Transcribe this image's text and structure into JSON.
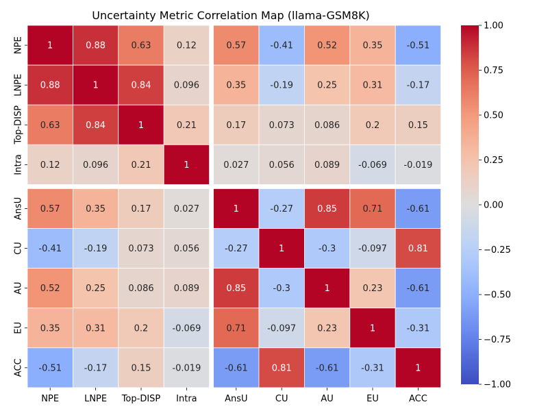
{
  "chart_data": {
    "type": "heatmap",
    "title": "Uncertainty Metric Correlation Map (llama-GSM8K)",
    "xlabel": "",
    "ylabel": "",
    "rows": [
      "NPE",
      "LNPE",
      "Top-DISP",
      "Intra",
      "AnsU",
      "CU",
      "AU",
      "EU",
      "ACC"
    ],
    "cols": [
      "NPE",
      "LNPE",
      "Top-DISP",
      "Intra",
      "AnsU",
      "CU",
      "AU",
      "EU",
      "ACC"
    ],
    "values": [
      [
        1,
        0.88,
        0.63,
        0.12,
        0.57,
        -0.41,
        0.52,
        0.35,
        -0.51
      ],
      [
        0.88,
        1,
        0.84,
        0.096,
        0.35,
        -0.19,
        0.25,
        0.31,
        -0.17
      ],
      [
        0.63,
        0.84,
        1,
        0.21,
        0.17,
        0.073,
        0.086,
        0.2,
        0.15
      ],
      [
        0.12,
        0.096,
        0.21,
        1,
        0.027,
        0.056,
        0.089,
        -0.069,
        -0.019
      ],
      [
        0.57,
        0.35,
        0.17,
        0.027,
        1,
        -0.27,
        0.85,
        0.71,
        -0.61
      ],
      [
        -0.41,
        -0.19,
        0.073,
        0.056,
        -0.27,
        1,
        -0.3,
        -0.097,
        0.81
      ],
      [
        0.52,
        0.25,
        0.086,
        0.089,
        0.85,
        -0.3,
        1,
        0.23,
        -0.61
      ],
      [
        0.35,
        0.31,
        0.2,
        -0.069,
        0.71,
        -0.097,
        0.23,
        1,
        -0.31
      ],
      [
        -0.51,
        -0.17,
        0.15,
        -0.019,
        -0.61,
        0.81,
        -0.61,
        -0.31,
        1
      ]
    ],
    "labels": [
      [
        "1",
        "0.88",
        "0.63",
        "0.12",
        "0.57",
        "-0.41",
        "0.52",
        "0.35",
        "-0.51"
      ],
      [
        "0.88",
        "1",
        "0.84",
        "0.096",
        "0.35",
        "-0.19",
        "0.25",
        "0.31",
        "-0.17"
      ],
      [
        "0.63",
        "0.84",
        "1",
        "0.21",
        "0.17",
        "0.073",
        "0.086",
        "0.2",
        "0.15"
      ],
      [
        "0.12",
        "0.096",
        "0.21",
        "1",
        "0.027",
        "0.056",
        "0.089",
        "-0.069",
        "-0.019"
      ],
      [
        "0.57",
        "0.35",
        "0.17",
        "0.027",
        "1",
        "-0.27",
        "0.85",
        "0.71",
        "-0.61"
      ],
      [
        "-0.41",
        "-0.19",
        "0.073",
        "0.056",
        "-0.27",
        "1",
        "-0.3",
        "-0.097",
        "0.81"
      ],
      [
        "0.52",
        "0.25",
        "0.086",
        "0.089",
        "0.85",
        "-0.3",
        "1",
        "0.23",
        "-0.61"
      ],
      [
        "0.35",
        "0.31",
        "0.2",
        "-0.069",
        "0.71",
        "-0.097",
        "0.23",
        "1",
        "-0.31"
      ],
      [
        "-0.51",
        "-0.17",
        "0.15",
        "-0.019",
        "-0.61",
        "0.81",
        "-0.61",
        "-0.31",
        "1"
      ]
    ],
    "row_group_break_after": "Intra",
    "col_group_break_after": "Intra",
    "colormap": "coolwarm",
    "vmin": -1,
    "vmax": 1,
    "colorbar_ticks": [
      1.0,
      0.75,
      0.5,
      0.25,
      0.0,
      -0.25,
      -0.5,
      -0.75,
      -1.0
    ],
    "colorbar_tick_labels": [
      "1.00",
      "0.75",
      "0.50",
      "0.25",
      "0.00",
      "−0.25",
      "−0.50",
      "−0.75",
      "−1.00"
    ],
    "grid": false,
    "legend": "colorbar-right"
  }
}
